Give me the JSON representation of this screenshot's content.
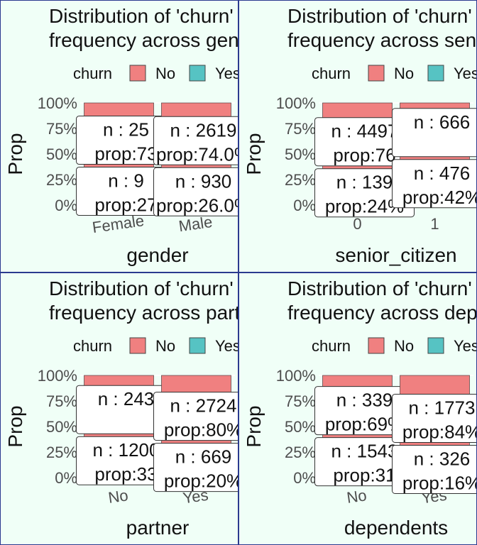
{
  "colors": {
    "no": "#f08080",
    "yes": "#56c3c3",
    "text": "#111111",
    "tick": "#4d4d4d",
    "grid": "#ffffff"
  },
  "legend": {
    "title": "churn",
    "items": [
      "No",
      "Yes"
    ]
  },
  "ylabel": "Prop",
  "yticks": [
    "0%",
    "25%",
    "50%",
    "75%",
    "100%"
  ],
  "chart_data": [
    {
      "type": "bar",
      "title_lines": [
        "Distribution of 'churn'",
        "frequency across gender"
      ],
      "xlabel": "gender",
      "ylabel": "Prop",
      "categories": [
        "Female",
        "Male"
      ],
      "rotate_ticks": true,
      "ylim": [
        0,
        1
      ],
      "series": [
        {
          "name": "No",
          "values": [
            0.73,
            0.74
          ],
          "counts": [
            "n : 25",
            "n : 2619"
          ],
          "props": [
            "prop:73",
            "prop:74.0%"
          ]
        },
        {
          "name": "Yes",
          "values": [
            0.27,
            0.26
          ],
          "counts": [
            "n : 9",
            "n : 930"
          ],
          "props": [
            "prop:27",
            "prop:26.0%"
          ]
        }
      ]
    },
    {
      "type": "bar",
      "title_lines": [
        "Distribution of 'churn'",
        "frequency across senior"
      ],
      "xlabel": "senior_citizen",
      "ylabel": "Prop",
      "categories": [
        "0",
        "1"
      ],
      "rotate_ticks": false,
      "ylim": [
        0,
        1
      ],
      "series": [
        {
          "name": "No",
          "values": [
            0.76,
            0.58
          ],
          "counts": [
            "n : 4497",
            "n : 666"
          ],
          "props": [
            "prop:76",
            ""
          ]
        },
        {
          "name": "Yes",
          "values": [
            0.24,
            0.42
          ],
          "counts": [
            "n : 139",
            "n : 476"
          ],
          "props": [
            "prop:24%",
            "prop:42%"
          ]
        }
      ]
    },
    {
      "type": "bar",
      "title_lines": [
        "Distribution of 'churn'",
        "frequency across partner"
      ],
      "xlabel": "partner",
      "ylabel": "Prop",
      "categories": [
        "No",
        "Yes"
      ],
      "rotate_ticks": true,
      "ylim": [
        0,
        1
      ],
      "series": [
        {
          "name": "No",
          "values": [
            0.67,
            0.8
          ],
          "counts": [
            "n : 243",
            "n : 2724"
          ],
          "props": [
            "",
            "prop:80%"
          ]
        },
        {
          "name": "Yes",
          "values": [
            0.33,
            0.2
          ],
          "counts": [
            "n : 1200",
            "n : 669"
          ],
          "props": [
            "prop:33",
            "prop:20%"
          ]
        }
      ]
    },
    {
      "type": "bar",
      "title_lines": [
        "Distribution of 'churn'",
        "frequency across dependents"
      ],
      "xlabel": "dependents",
      "ylabel": "Prop",
      "categories": [
        "No",
        "Yes"
      ],
      "rotate_ticks": true,
      "ylim": [
        0,
        1
      ],
      "series": [
        {
          "name": "No",
          "values": [
            0.69,
            0.84
          ],
          "counts": [
            "n : 339",
            "n : 1773"
          ],
          "props": [
            "prop:69%",
            "prop:84%"
          ]
        },
        {
          "name": "Yes",
          "values": [
            0.31,
            0.16
          ],
          "counts": [
            "n : 1543",
            "n : 326"
          ],
          "props": [
            "prop:31",
            "prop:16%"
          ]
        }
      ]
    }
  ]
}
